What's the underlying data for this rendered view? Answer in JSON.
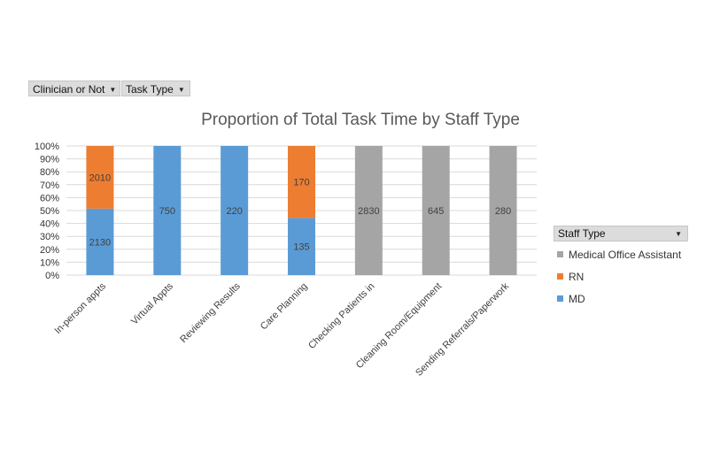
{
  "filters": [
    {
      "label": "Clinician or Not"
    },
    {
      "label": "Task Type"
    }
  ],
  "legend": {
    "header": "Staff Type",
    "items": [
      {
        "label": "Medical Office Assistant",
        "color": "#a5a5a5"
      },
      {
        "label": "RN",
        "color": "#ed7d31"
      },
      {
        "label": "MD",
        "color": "#5b9bd5"
      }
    ]
  },
  "chart_data": {
    "type": "bar",
    "stacked": "percent",
    "title": "Proportion of Total Task Time by Staff Type",
    "xlabel": "",
    "ylabel": "",
    "ylim": [
      0,
      100
    ],
    "yticks": [
      "0%",
      "10%",
      "20%",
      "30%",
      "40%",
      "50%",
      "60%",
      "70%",
      "80%",
      "90%",
      "100%"
    ],
    "grid": true,
    "legend_position": "right",
    "categories": [
      "In-person appts",
      "Virtual Appts",
      "Reviewing Results",
      "Care Planning",
      "Checking Patients in",
      "Cleaning Room/Equipment",
      "Sending Referrals/Paperwork"
    ],
    "series": [
      {
        "name": "MD",
        "color": "#5b9bd5",
        "values": [
          2130,
          750,
          220,
          135,
          0,
          0,
          0
        ]
      },
      {
        "name": "RN",
        "color": "#ed7d31",
        "values": [
          2010,
          0,
          0,
          170,
          0,
          0,
          0
        ]
      },
      {
        "name": "Medical Office Assistant",
        "color": "#a5a5a5",
        "values": [
          0,
          0,
          0,
          0,
          2830,
          645,
          280
        ]
      }
    ]
  }
}
